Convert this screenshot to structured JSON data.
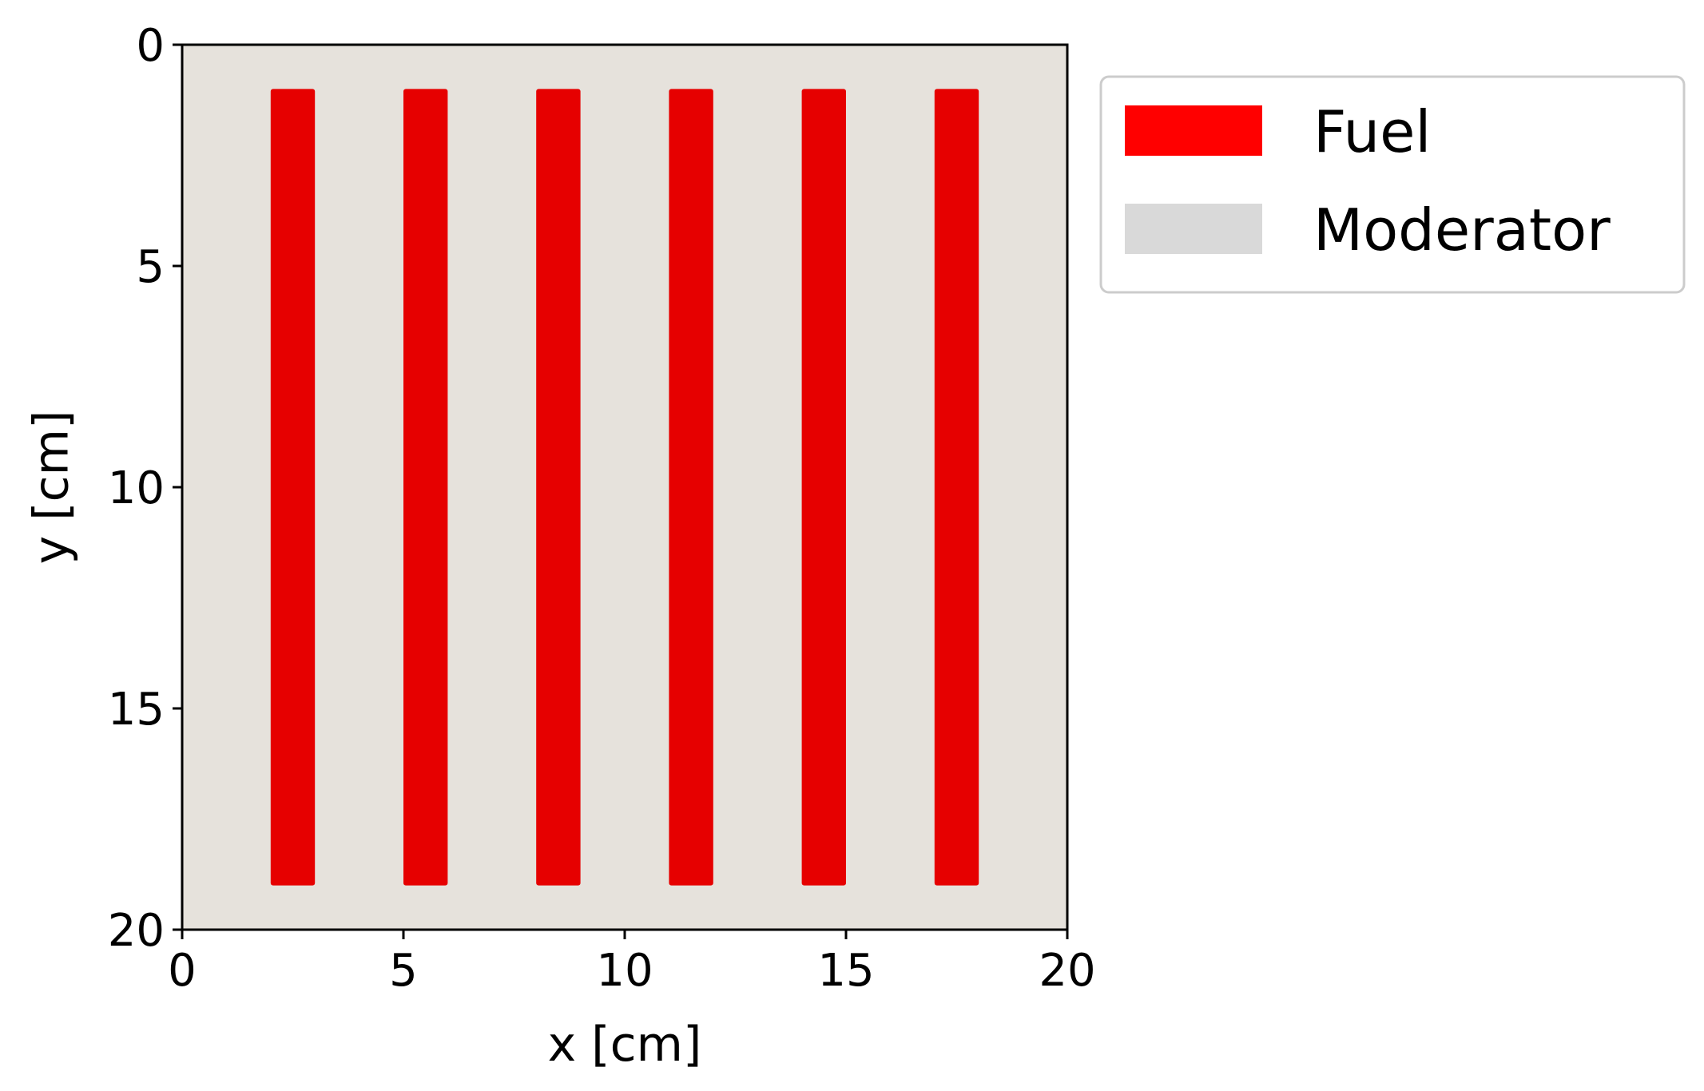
{
  "chart_data": {
    "type": "heatmap",
    "title": "",
    "xlabel": "x [cm]",
    "ylabel": "y [cm]",
    "xlim": [
      0,
      20
    ],
    "ylim": [
      0,
      20
    ],
    "y_inverted": true,
    "x_ticks": [
      "0",
      "5",
      "10",
      "15",
      "20"
    ],
    "y_ticks": [
      "0",
      "5",
      "10",
      "15",
      "20"
    ],
    "x_tick_values": [
      0,
      5,
      10,
      15,
      20
    ],
    "y_tick_values": [
      0,
      5,
      10,
      15,
      20
    ],
    "grid": false,
    "legend_position": "outside-top-right",
    "background_material": "Moderator",
    "materials": [
      {
        "name": "Fuel",
        "color": "#ff0000",
        "plot_color": "#e60000"
      },
      {
        "name": "Moderator",
        "color": "#d9d9d9",
        "plot_color": "#e6e2dc"
      }
    ],
    "fuel_rods": [
      {
        "material": "Fuel",
        "x_min": 2.0,
        "x_max": 3.0,
        "y_min": 1.0,
        "y_max": 19.0
      },
      {
        "material": "Fuel",
        "x_min": 5.0,
        "x_max": 6.0,
        "y_min": 1.0,
        "y_max": 19.0
      },
      {
        "material": "Fuel",
        "x_min": 8.0,
        "x_max": 9.0,
        "y_min": 1.0,
        "y_max": 19.0
      },
      {
        "material": "Fuel",
        "x_min": 11.0,
        "x_max": 12.0,
        "y_min": 1.0,
        "y_max": 19.0
      },
      {
        "material": "Fuel",
        "x_min": 14.0,
        "x_max": 15.0,
        "y_min": 1.0,
        "y_max": 19.0
      },
      {
        "material": "Fuel",
        "x_min": 17.0,
        "x_max": 18.0,
        "y_min": 1.0,
        "y_max": 19.0
      }
    ]
  }
}
